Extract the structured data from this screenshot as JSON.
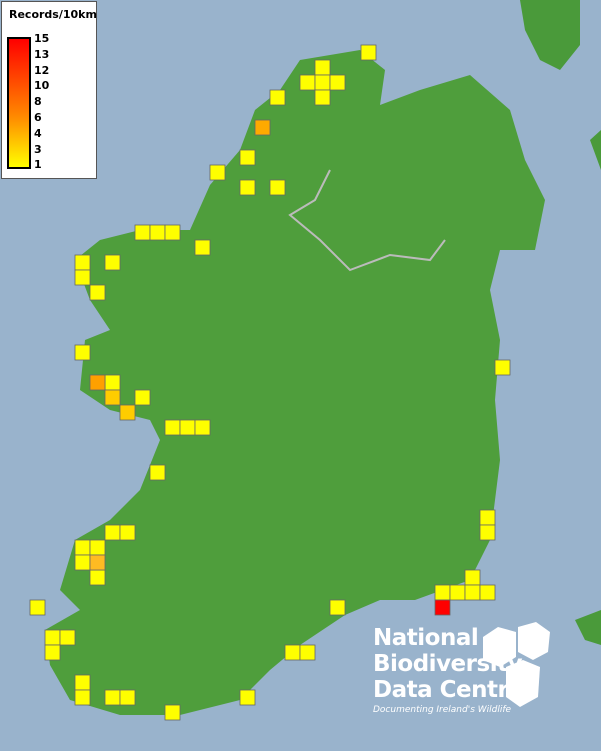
{
  "legend": {
    "title": "Records/10km",
    "ticks": [
      "15",
      "13",
      "12",
      "10",
      "8",
      "6",
      "4",
      "3",
      "1"
    ],
    "colors": {
      "max": "#ff0000",
      "mid": "#ff8800",
      "min": "#ffff00"
    }
  },
  "logo": {
    "line1": "National",
    "line2": "Biodiversity",
    "line3": "Data Centre",
    "tagline": "Documenting Ireland's Wildlife"
  },
  "colors": {
    "sea": "#99b3cc",
    "land": "#4a9a3a"
  }
}
